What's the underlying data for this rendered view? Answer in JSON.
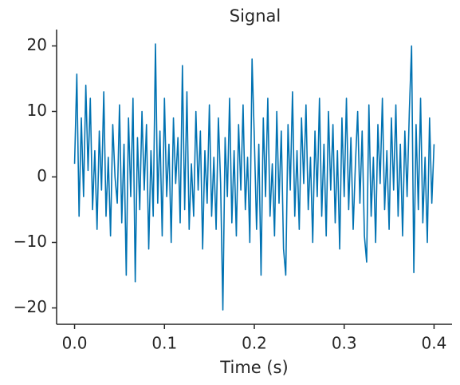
{
  "chart_data": {
    "type": "line",
    "title": "Signal",
    "xlabel": "Time (s)",
    "x": [
      0,
      0.0025,
      0.005,
      0.0075,
      0.01,
      0.0125,
      0.015,
      0.0175,
      0.02,
      0.0225,
      0.025,
      0.0275,
      0.03,
      0.0325,
      0.035,
      0.0375,
      0.04,
      0.0425,
      0.045,
      0.0475,
      0.05,
      0.0525,
      0.055,
      0.0575,
      0.06,
      0.0625,
      0.065,
      0.0675,
      0.07,
      0.0725,
      0.075,
      0.0775,
      0.08,
      0.0825,
      0.085,
      0.0875,
      0.09,
      0.0925,
      0.095,
      0.0975,
      0.1,
      0.1025,
      0.105,
      0.1075,
      0.11,
      0.1125,
      0.115,
      0.1175,
      0.12,
      0.1225,
      0.125,
      0.1275,
      0.13,
      0.1325,
      0.135,
      0.1375,
      0.14,
      0.1425,
      0.145,
      0.1475,
      0.15,
      0.1525,
      0.155,
      0.1575,
      0.16,
      0.1625,
      0.165,
      0.1675,
      0.17,
      0.1725,
      0.175,
      0.1775,
      0.18,
      0.1825,
      0.185,
      0.1875,
      0.19,
      0.1925,
      0.195,
      0.1975,
      0.2,
      0.2025,
      0.205,
      0.2075,
      0.21,
      0.2125,
      0.215,
      0.2175,
      0.22,
      0.2225,
      0.225,
      0.2275,
      0.23,
      0.2325,
      0.235,
      0.2375,
      0.24,
      0.2425,
      0.245,
      0.2475,
      0.25,
      0.2525,
      0.255,
      0.2575,
      0.26,
      0.2625,
      0.265,
      0.2675,
      0.27,
      0.2725,
      0.275,
      0.2775,
      0.28,
      0.2825,
      0.285,
      0.2875,
      0.29,
      0.2925,
      0.295,
      0.2975,
      0.3,
      0.3025,
      0.305,
      0.3075,
      0.31,
      0.3125,
      0.315,
      0.3175,
      0.32,
      0.3225,
      0.325,
      0.3275,
      0.33,
      0.3325,
      0.335,
      0.3375,
      0.34,
      0.3425,
      0.345,
      0.3475,
      0.35,
      0.3525,
      0.355,
      0.3575,
      0.36,
      0.3625,
      0.365,
      0.3675,
      0.37,
      0.3725,
      0.375,
      0.3775,
      0.38,
      0.3825,
      0.385,
      0.3875,
      0.39,
      0.3925,
      0.395,
      0.3975,
      0.4
    ],
    "series": [
      {
        "color": "#0072b2",
        "values": [
          2,
          15.7,
          -6,
          9,
          -3,
          14,
          1,
          12,
          -5,
          4,
          -8,
          7,
          -2,
          13,
          -6,
          3,
          -9,
          8,
          0,
          -4,
          11,
          -7,
          5,
          -15,
          9,
          -3,
          12,
          -16,
          6,
          -5,
          10,
          -2,
          8,
          -11,
          4,
          -6,
          20.3,
          -4,
          7,
          -9,
          12,
          -3,
          5,
          -10,
          9,
          -1,
          6,
          -7,
          17,
          -5,
          13,
          -8,
          2,
          -6,
          10,
          -2,
          7,
          -11,
          4,
          -4,
          11,
          -6,
          3,
          -8,
          9,
          -1,
          -20.3,
          6,
          -3,
          12,
          -7,
          4,
          -9,
          8,
          -2,
          11,
          -5,
          3,
          -10,
          18,
          6,
          -8,
          5,
          -15,
          9,
          -3,
          12,
          -6,
          2,
          -9,
          10,
          -4,
          7,
          -11,
          -15,
          8,
          -2,
          13,
          -6,
          4,
          -8,
          9,
          -1,
          11,
          -5,
          3,
          -10,
          7,
          -3,
          12,
          -6,
          5,
          -9,
          10,
          -2,
          8,
          -7,
          4,
          -11,
          9,
          -3,
          12,
          -5,
          6,
          -8,
          2,
          10,
          -4,
          7,
          -9,
          -13,
          11,
          -6,
          3,
          -10,
          8,
          -1,
          12,
          -5,
          4,
          -8,
          9,
          -2,
          11,
          -6,
          5,
          -9,
          7,
          -3,
          10,
          20,
          -14.6,
          8,
          -5,
          12,
          -7,
          3,
          -10,
          9,
          -4,
          5
        ]
      }
    ],
    "xlim": [
      -0.02,
      0.42
    ],
    "ylim": [
      -22.5,
      22.5
    ],
    "xticks": [
      {
        "value": 0,
        "label": "0.0"
      },
      0.1,
      0.2,
      0.3,
      0.4
    ],
    "yticks": [
      {
        "value": -20,
        "label": "−20"
      },
      {
        "value": -10,
        "label": "−10"
      },
      0,
      10,
      20
    ],
    "grid": false
  }
}
